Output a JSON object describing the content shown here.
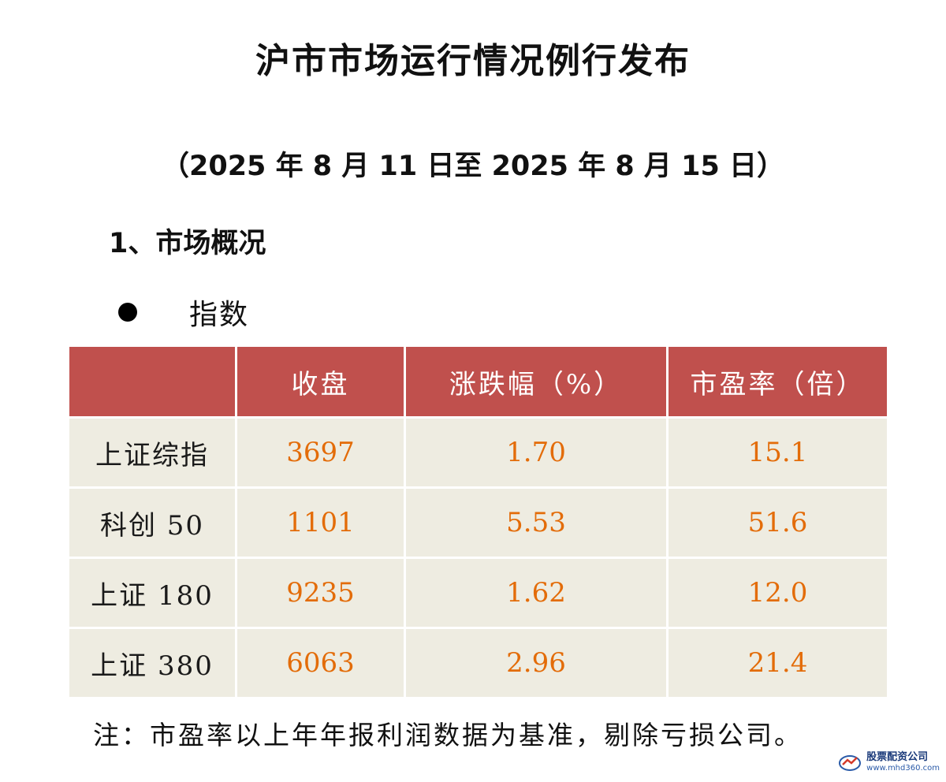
{
  "document": {
    "title": "沪市市场运行情况例行发布",
    "date_range": "（2025 年 8 月 11 日至 2025 年 8 月 15 日）",
    "section_heading": "1、市场概况",
    "bullet_label": "指数"
  },
  "table": {
    "headers": [
      "",
      "收盘",
      "涨跌幅（%）",
      "市盈率（倍）"
    ],
    "rows": [
      {
        "name": "上证综指",
        "close": "3697",
        "change": "1.70",
        "pe": "15.1"
      },
      {
        "name": "科创 50",
        "close": "1101",
        "change": "5.53",
        "pe": "51.6"
      },
      {
        "name": "上证 180",
        "close": "9235",
        "change": "1.62",
        "pe": "12.0"
      },
      {
        "name": "上证 380",
        "close": "6063",
        "change": "2.96",
        "pe": "21.4"
      }
    ]
  },
  "note": "注：市盈率以上年年报利润数据为基准，剔除亏损公司。",
  "watermark": {
    "name": "股票配资公司",
    "url": "www.mhd360.com"
  },
  "colors": {
    "header_bg": "#c0504d",
    "row_bg": "#eeece1",
    "number_text": "#e36c09"
  }
}
